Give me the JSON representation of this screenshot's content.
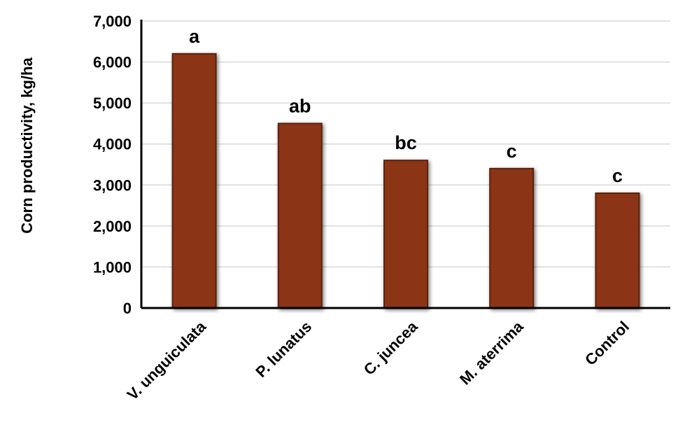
{
  "chart_data": {
    "type": "bar",
    "title": "",
    "xlabel": "",
    "ylabel": "Corn productivity, kg/ha",
    "categories": [
      "V. unguiculata",
      "P. lunatus",
      "C. juncea",
      "M. aterrima",
      "Control"
    ],
    "values": [
      6200,
      4500,
      3600,
      3400,
      2800
    ],
    "data_labels": [
      "a",
      "ab",
      "bc",
      "c",
      "c"
    ],
    "ylim": [
      0,
      7000
    ],
    "yticks": [
      0,
      1000,
      2000,
      3000,
      4000,
      5000,
      6000,
      7000
    ],
    "ytick_labels": [
      "0",
      "1,000",
      "2,000",
      "3,000",
      "4,000",
      "5,000",
      "6,000",
      "7,000"
    ],
    "grid": "horizontal",
    "legend": "none",
    "colors": {
      "bar_fill": "#8B3512",
      "bar_edge": "#5A200A",
      "grid": "#D9D9D9",
      "axis": "#000000"
    }
  }
}
